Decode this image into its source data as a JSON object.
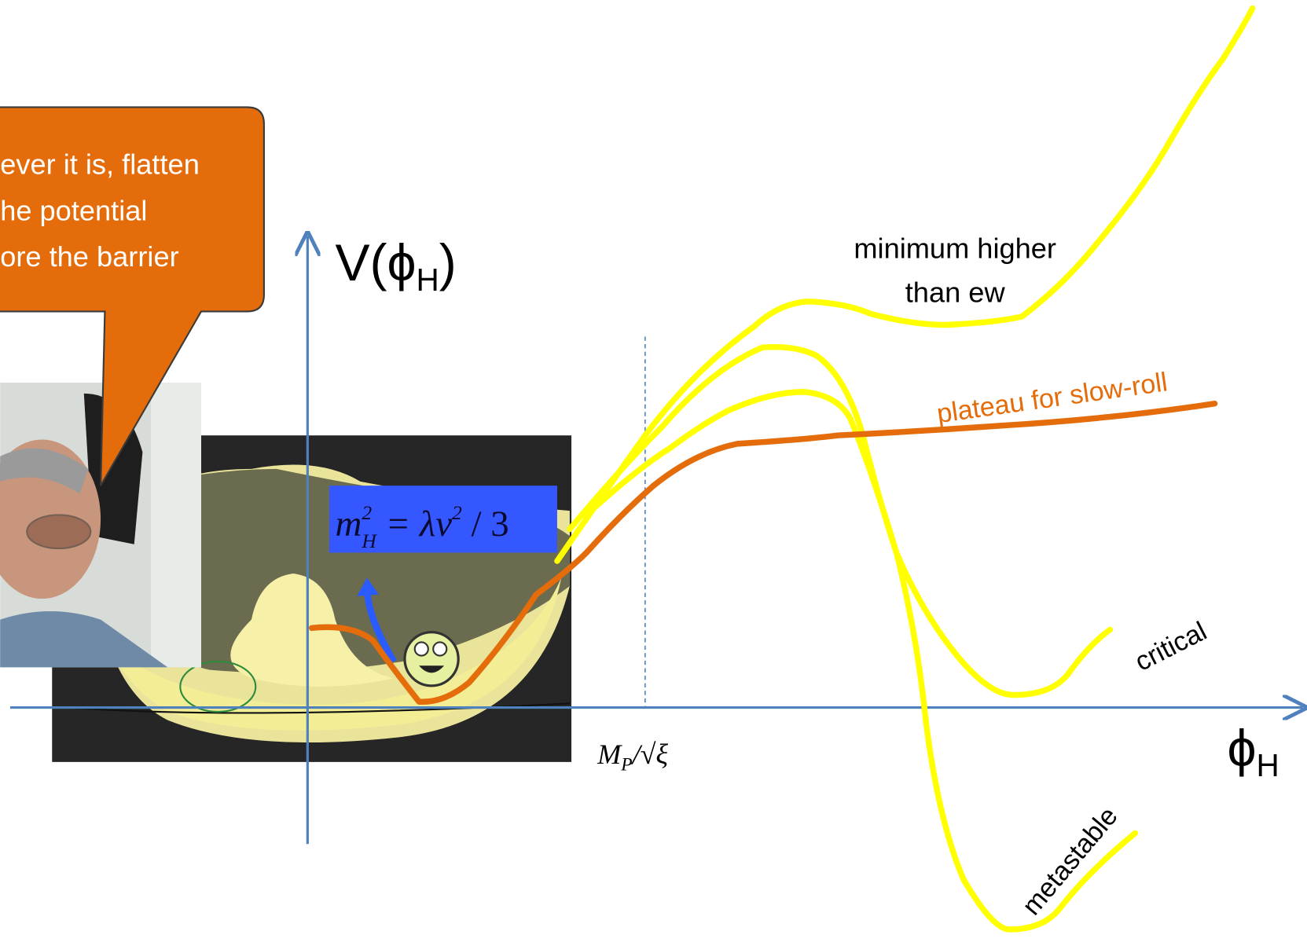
{
  "callout": {
    "lines": [
      "ever it is, flatten",
      "he potential",
      "ore the barrier"
    ]
  },
  "y_axis_label": {
    "base": "V(ϕ",
    "sub": "H",
    "close": ")"
  },
  "x_axis_label": {
    "base": "ϕ",
    "sub": "H"
  },
  "planck_mark": {
    "num": "M",
    "num_sub": "P",
    "rest": "/√ξ"
  },
  "formula": {
    "lhs": "m",
    "sup": "2",
    "sub": "H",
    "rhs": " = λv",
    "rhs_sup": "2",
    "tail": " / 3"
  },
  "curve_labels": {
    "minimum": [
      "minimum higher",
      "than ew"
    ],
    "plateau": "plateau for slow-roll",
    "critical": "critical",
    "metastable": "metastable"
  }
}
